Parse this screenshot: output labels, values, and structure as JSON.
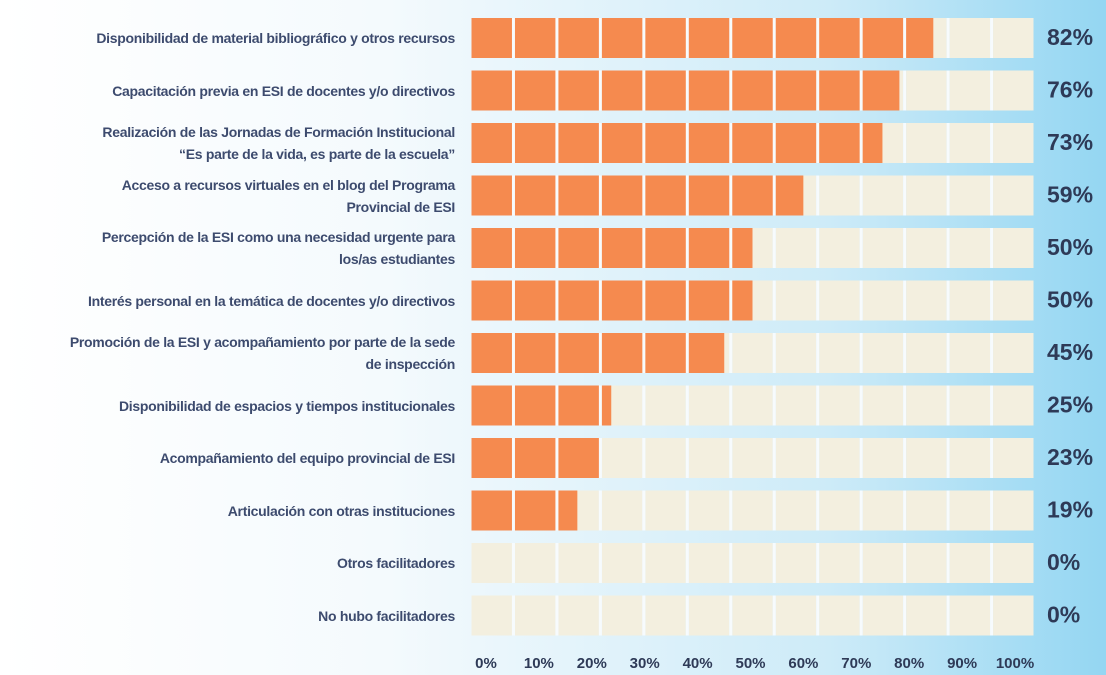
{
  "chart_data": {
    "type": "bar",
    "categories": [
      "Disponibilidad de material bibliográfico y otros recursos",
      "Capacitación previa en ESI de docentes y/o directivos",
      "Realización de las Jornadas de Formación Institucional\n“Es parte de la vida, es parte de la escuela”",
      "Acceso a recursos virtuales en el blog del Programa\nProvincial de ESI",
      "Percepción de la ESI como una necesidad urgente para\nlos/as estudiantes",
      "Interés personal en la temática de docentes y/o directivos",
      "Promoción de la ESI y acompañamiento por parte de la sede\nde inspección",
      "Disponibilidad de espacios y tiempos institucionales",
      "Acompañamiento del equipo provincial de ESI",
      "Articulación con otras instituciones",
      "Otros facilitadores",
      "No hubo facilitadores"
    ],
    "values": [
      82,
      76,
      73,
      59,
      50,
      50,
      45,
      25,
      23,
      19,
      0,
      0
    ],
    "value_labels": [
      "82%",
      "76%",
      "73%",
      "59%",
      "50%",
      "50%",
      "45%",
      "25%",
      "23%",
      "19%",
      "0%",
      "0%"
    ],
    "color": "#f58a4f",
    "xlim": [
      0,
      100
    ],
    "xticks": [
      {
        "value": 0,
        "label": "0%"
      },
      {
        "value": 10,
        "label": "10%"
      },
      {
        "value": 20,
        "label": "20%"
      },
      {
        "value": 30,
        "label": "30%"
      },
      {
        "value": 40,
        "label": "40%"
      },
      {
        "value": 50,
        "label": "50%"
      },
      {
        "value": 60,
        "label": "60%"
      },
      {
        "value": 70,
        "label": "70%"
      },
      {
        "value": 80,
        "label": "80%"
      },
      {
        "value": 90,
        "label": "90%"
      },
      {
        "value": 100,
        "label": "100%"
      }
    ]
  }
}
